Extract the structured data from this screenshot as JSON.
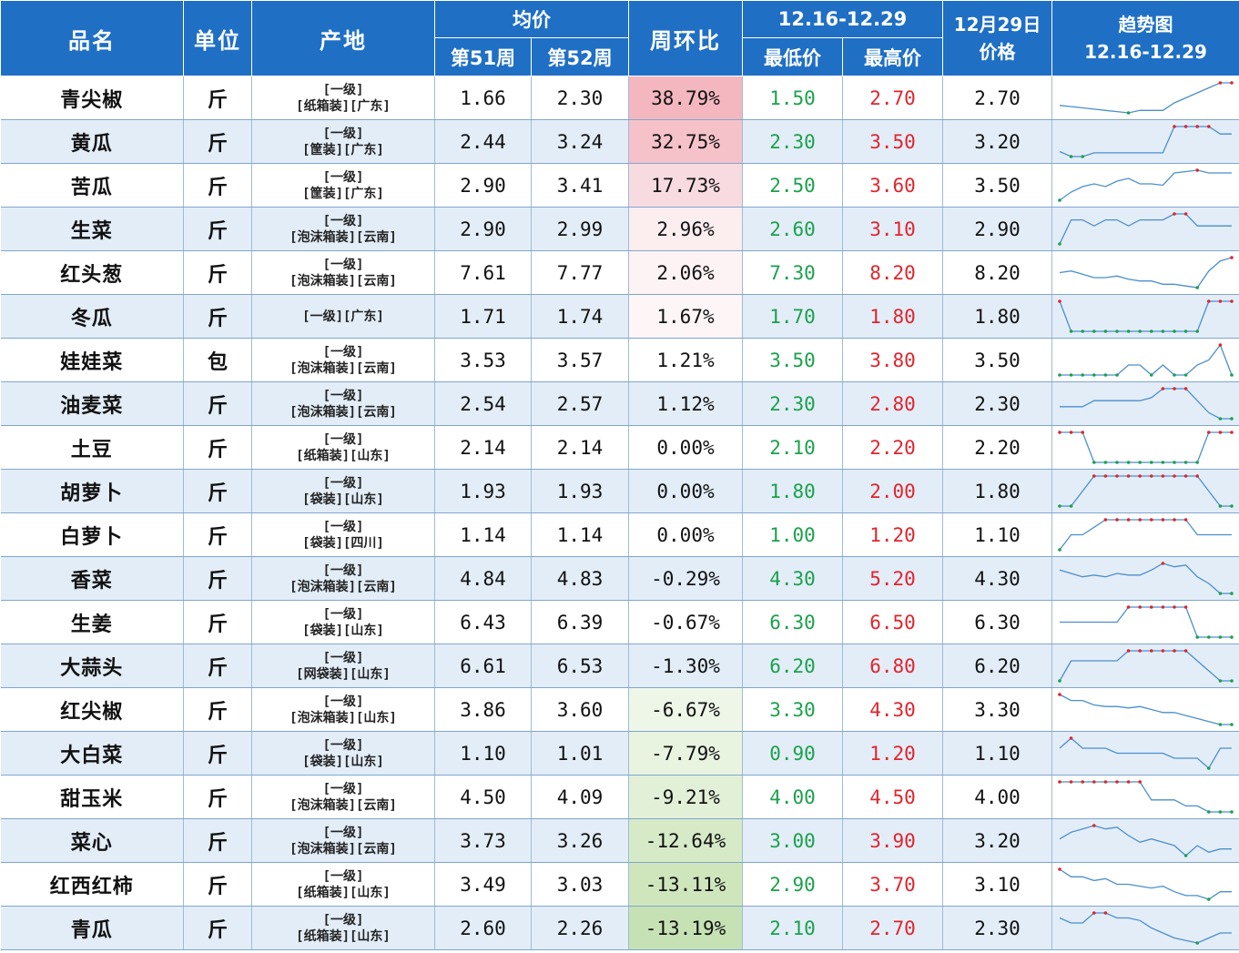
{
  "header": {
    "name": "品名",
    "unit": "单位",
    "origin": "产地",
    "avg": "均价",
    "wk51": "第51周",
    "wk52": "第52周",
    "wow": "周环比",
    "range": "12.16-12.29",
    "low": "最低价",
    "high": "最高价",
    "date_line1": "12月29日",
    "date_line2": "价格",
    "trend_line1": "趋势图",
    "trend_line2": "12.16-12.29"
  },
  "colors": {
    "header_bg": "#1f6fc5",
    "low_text": "#1aa14a",
    "high_text": "#e0242c",
    "spark_line": "#4a8fce",
    "spark_max": "#e0242c",
    "spark_min": "#1aa14a",
    "up_strong": "#f4b7c0",
    "down_strong": "#c6e2b4"
  },
  "rows": [
    {
      "name": "青尖椒",
      "unit": "斤",
      "origin1": "[一级]",
      "origin2": "[纸箱装][广东]",
      "w51": "1.66",
      "w52": "2.30",
      "change": "38.79%",
      "change_bg": "#f4b7c0",
      "low": "1.50",
      "high": "2.70",
      "price": "2.70",
      "trend": [
        1.8,
        1.75,
        1.7,
        1.65,
        1.6,
        1.55,
        1.5,
        1.6,
        1.6,
        1.6,
        1.9,
        2.1,
        2.3,
        2.5,
        2.7,
        2.7
      ]
    },
    {
      "name": "黄瓜",
      "unit": "斤",
      "origin1": "[一级]",
      "origin2": "[筐装][广东]",
      "w51": "2.44",
      "w52": "3.24",
      "change": "32.75%",
      "change_bg": "#f6c2c9",
      "low": "2.30",
      "high": "3.50",
      "price": "3.20",
      "trend": [
        2.5,
        2.3,
        2.3,
        2.45,
        2.45,
        2.45,
        2.45,
        2.45,
        2.45,
        2.45,
        3.5,
        3.5,
        3.5,
        3.5,
        3.2,
        3.2
      ]
    },
    {
      "name": "苦瓜",
      "unit": "斤",
      "origin1": "[一级]",
      "origin2": "[筐装][广东]",
      "w51": "2.90",
      "w52": "3.41",
      "change": "17.73%",
      "change_bg": "#f8dbe0",
      "low": "2.50",
      "high": "3.60",
      "price": "3.50",
      "trend": [
        2.5,
        2.8,
        3.0,
        3.1,
        3.0,
        3.2,
        3.3,
        3.1,
        3.1,
        3.05,
        3.5,
        3.55,
        3.6,
        3.5,
        3.5,
        3.5
      ]
    },
    {
      "name": "生菜",
      "unit": "斤",
      "origin1": "[一级]",
      "origin2": "[泡沫箱装][云南]",
      "w51": "2.90",
      "w52": "2.99",
      "change": "2.96%",
      "change_bg": "#fcedef",
      "low": "2.60",
      "high": "3.10",
      "price": "2.90",
      "trend": [
        2.6,
        3.0,
        3.0,
        2.9,
        3.0,
        3.0,
        2.9,
        3.0,
        3.0,
        3.0,
        3.1,
        3.1,
        2.9,
        2.9,
        2.9,
        2.9
      ]
    },
    {
      "name": "红头葱",
      "unit": "斤",
      "origin1": "[一级]",
      "origin2": "[泡沫箱装][云南]",
      "w51": "7.61",
      "w52": "7.77",
      "change": "2.06%",
      "change_bg": "#fdf2f4",
      "low": "7.30",
      "high": "8.20",
      "price": "8.20",
      "trend": [
        7.75,
        7.8,
        7.7,
        7.6,
        7.6,
        7.65,
        7.55,
        7.5,
        7.5,
        7.4,
        7.4,
        7.35,
        7.3,
        7.8,
        8.1,
        8.2
      ]
    },
    {
      "name": "冬瓜",
      "unit": "斤",
      "origin1": "[一级][广东]",
      "origin2": "",
      "w51": "1.71",
      "w52": "1.74",
      "change": "1.67%",
      "change_bg": "#fdf5f6",
      "low": "1.70",
      "high": "1.80",
      "price": "1.80",
      "trend": [
        1.8,
        1.7,
        1.7,
        1.7,
        1.7,
        1.7,
        1.7,
        1.7,
        1.7,
        1.7,
        1.7,
        1.7,
        1.7,
        1.8,
        1.8,
        1.8
      ]
    },
    {
      "name": "娃娃菜",
      "unit": "包",
      "origin1": "[一级]",
      "origin2": "[泡沫箱装][云南]",
      "w51": "3.53",
      "w52": "3.57",
      "change": "1.21%",
      "change_bg": "",
      "low": "3.50",
      "high": "3.80",
      "price": "3.50",
      "trend": [
        3.5,
        3.5,
        3.5,
        3.5,
        3.5,
        3.5,
        3.6,
        3.6,
        3.5,
        3.6,
        3.5,
        3.5,
        3.6,
        3.65,
        3.8,
        3.5
      ]
    },
    {
      "name": "油麦菜",
      "unit": "斤",
      "origin1": "[一级]",
      "origin2": "[泡沫箱装][云南]",
      "w51": "2.54",
      "w52": "2.57",
      "change": "1.12%",
      "change_bg": "",
      "low": "2.30",
      "high": "2.80",
      "price": "2.30",
      "trend": [
        2.5,
        2.5,
        2.5,
        2.6,
        2.6,
        2.6,
        2.6,
        2.6,
        2.65,
        2.8,
        2.8,
        2.8,
        2.6,
        2.4,
        2.3,
        2.3
      ]
    },
    {
      "name": "土豆",
      "unit": "斤",
      "origin1": "[一级]",
      "origin2": "[纸箱装][山东]",
      "w51": "2.14",
      "w52": "2.14",
      "change": "0.00%",
      "change_bg": "",
      "low": "2.10",
      "high": "2.20",
      "price": "2.20",
      "trend": [
        2.2,
        2.2,
        2.2,
        2.1,
        2.1,
        2.1,
        2.1,
        2.1,
        2.1,
        2.1,
        2.1,
        2.1,
        2.1,
        2.2,
        2.2,
        2.2
      ]
    },
    {
      "name": "胡萝卜",
      "unit": "斤",
      "origin1": "[一级]",
      "origin2": "[袋装][山东]",
      "w51": "1.93",
      "w52": "1.93",
      "change": "0.00%",
      "change_bg": "",
      "low": "1.80",
      "high": "2.00",
      "price": "1.80",
      "trend": [
        1.8,
        1.8,
        1.9,
        2.0,
        2.0,
        2.0,
        2.0,
        2.0,
        2.0,
        2.0,
        2.0,
        2.0,
        2.0,
        1.9,
        1.8,
        1.8
      ]
    },
    {
      "name": "白萝卜",
      "unit": "斤",
      "origin1": "[一级]",
      "origin2": "[袋装][四川]",
      "w51": "1.14",
      "w52": "1.14",
      "change": "0.00%",
      "change_bg": "",
      "low": "1.00",
      "high": "1.20",
      "price": "1.10",
      "trend": [
        1.0,
        1.1,
        1.1,
        1.15,
        1.2,
        1.2,
        1.2,
        1.2,
        1.2,
        1.2,
        1.2,
        1.2,
        1.1,
        1.1,
        1.1,
        1.1
      ]
    },
    {
      "name": "香菜",
      "unit": "斤",
      "origin1": "[一级]",
      "origin2": "[泡沫箱装][云南]",
      "w51": "4.84",
      "w52": "4.83",
      "change": "-0.29%",
      "change_bg": "",
      "low": "4.30",
      "high": "5.20",
      "price": "4.30",
      "trend": [
        5.0,
        4.9,
        4.8,
        4.85,
        4.8,
        4.9,
        4.85,
        4.85,
        5.0,
        5.2,
        5.1,
        5.15,
        4.8,
        4.6,
        4.3,
        4.3
      ]
    },
    {
      "name": "生姜",
      "unit": "斤",
      "origin1": "[一级]",
      "origin2": "[袋装][山东]",
      "w51": "6.43",
      "w52": "6.39",
      "change": "-0.67%",
      "change_bg": "",
      "low": "6.30",
      "high": "6.50",
      "price": "6.30",
      "trend": [
        6.4,
        6.4,
        6.4,
        6.4,
        6.4,
        6.4,
        6.5,
        6.5,
        6.5,
        6.5,
        6.5,
        6.5,
        6.3,
        6.3,
        6.3,
        6.3
      ]
    },
    {
      "name": "大蒜头",
      "unit": "斤",
      "origin1": "[一级]",
      "origin2": "[网袋装][山东]",
      "w51": "6.61",
      "w52": "6.53",
      "change": "-1.30%",
      "change_bg": "",
      "low": "6.20",
      "high": "6.80",
      "price": "6.20",
      "trend": [
        6.2,
        6.6,
        6.6,
        6.6,
        6.6,
        6.6,
        6.8,
        6.8,
        6.8,
        6.8,
        6.8,
        6.8,
        6.6,
        6.4,
        6.2,
        6.2
      ]
    },
    {
      "name": "红尖椒",
      "unit": "斤",
      "origin1": "[一级]",
      "origin2": "[泡沫箱装][山东]",
      "w51": "3.86",
      "w52": "3.60",
      "change": "-6.67%",
      "change_bg": "#eef6e8",
      "low": "3.30",
      "high": "4.30",
      "price": "3.30",
      "trend": [
        4.3,
        4.1,
        4.1,
        3.95,
        3.9,
        3.9,
        3.85,
        3.9,
        3.8,
        3.7,
        3.7,
        3.6,
        3.5,
        3.4,
        3.3,
        3.3
      ]
    },
    {
      "name": "大白菜",
      "unit": "斤",
      "origin1": "[一级]",
      "origin2": "[袋装][山东]",
      "w51": "1.10",
      "w52": "1.01",
      "change": "-7.79%",
      "change_bg": "#e8f3e0",
      "low": "0.90",
      "high": "1.20",
      "price": "1.10",
      "trend": [
        1.1,
        1.2,
        1.1,
        1.1,
        1.1,
        1.05,
        1.05,
        1.05,
        1.05,
        1.05,
        1.0,
        1.0,
        1.0,
        0.9,
        1.1,
        1.1
      ]
    },
    {
      "name": "甜玉米",
      "unit": "斤",
      "origin1": "[一级]",
      "origin2": "[泡沫箱装][云南]",
      "w51": "4.50",
      "w52": "4.09",
      "change": "-9.21%",
      "change_bg": "#e2f0d8",
      "low": "4.00",
      "high": "4.50",
      "price": "4.00",
      "trend": [
        4.5,
        4.5,
        4.5,
        4.5,
        4.5,
        4.5,
        4.5,
        4.5,
        4.2,
        4.2,
        4.2,
        4.1,
        4.1,
        4.0,
        4.0,
        4.0
      ]
    },
    {
      "name": "菜心",
      "unit": "斤",
      "origin1": "[一级]",
      "origin2": "[泡沫箱装][云南]",
      "w51": "3.73",
      "w52": "3.26",
      "change": "-12.64%",
      "change_bg": "#d6eac7",
      "low": "3.00",
      "high": "3.90",
      "price": "3.20",
      "trend": [
        3.5,
        3.7,
        3.8,
        3.9,
        3.8,
        3.85,
        3.6,
        3.4,
        3.5,
        3.4,
        3.3,
        3.0,
        3.3,
        3.1,
        3.2,
        3.2
      ]
    },
    {
      "name": "红西红柿",
      "unit": "斤",
      "origin1": "[一级]",
      "origin2": "[纸箱装][山东]",
      "w51": "3.49",
      "w52": "3.03",
      "change": "-13.11%",
      "change_bg": "#cfe6bd",
      "low": "2.90",
      "high": "3.70",
      "price": "3.10",
      "trend": [
        3.7,
        3.5,
        3.5,
        3.4,
        3.45,
        3.3,
        3.3,
        3.25,
        3.2,
        3.25,
        3.1,
        3.0,
        3.0,
        2.9,
        3.1,
        3.1
      ]
    },
    {
      "name": "青瓜",
      "unit": "斤",
      "origin1": "[一级]",
      "origin2": "[纸箱装][山东]",
      "w51": "2.60",
      "w52": "2.26",
      "change": "-13.19%",
      "change_bg": "#c6e2b4",
      "low": "2.10",
      "high": "2.70",
      "price": "2.30",
      "trend": [
        2.6,
        2.5,
        2.5,
        2.7,
        2.7,
        2.6,
        2.6,
        2.55,
        2.4,
        2.3,
        2.2,
        2.15,
        2.1,
        2.2,
        2.3,
        2.3
      ]
    }
  ]
}
